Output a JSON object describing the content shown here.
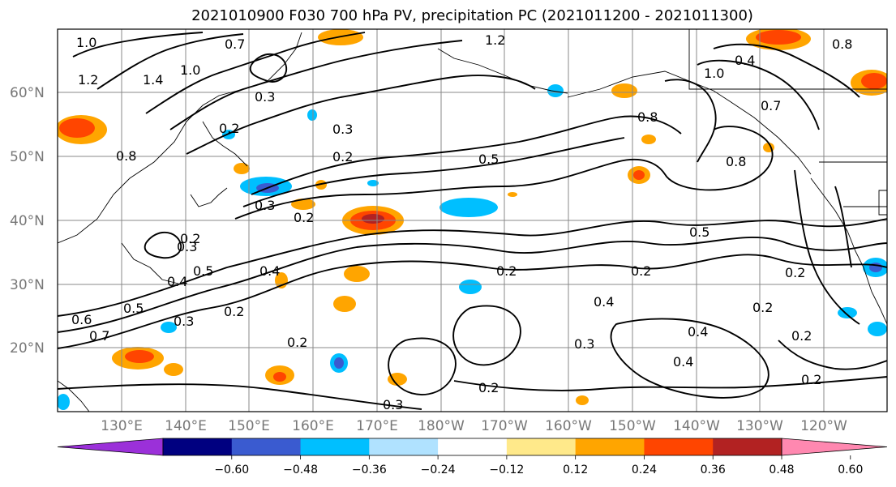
{
  "title": "2021010900 F030 700 hPa PV, precipitation PC (2021011200 - 2021011300)",
  "lat_labels": [
    "60°N",
    "50°N",
    "40°N",
    "30°N",
    "20°N"
  ],
  "lon_labels": [
    "130°E",
    "140°E",
    "150°E",
    "160°E",
    "170°E",
    "180°W",
    "170°W",
    "160°W",
    "150°W",
    "140°W",
    "130°W",
    "120°W"
  ],
  "colorbar": {
    "colors": [
      "#9b30d9",
      "#000080",
      "#3a5bd0",
      "#00bfff",
      "#b0e2ff",
      "#ffffff",
      "#ffe98a",
      "#ffa500",
      "#ff4500",
      "#b22222",
      "#ff88b0"
    ],
    "tick_labels": [
      "−0.60",
      "−0.48",
      "−0.36",
      "−0.24",
      "−0.12",
      "0.12",
      "0.24",
      "0.36",
      "0.48",
      "0.60"
    ]
  },
  "contour_labels": [
    "1.0",
    "0.7",
    "1.2",
    "0.8",
    "1.4",
    "1.0",
    "0.3",
    "0.3",
    "0.2",
    "0.5",
    "0.2",
    "0.3",
    "0.2",
    "0.4",
    "0.5",
    "0.4",
    "0.5",
    "0.7",
    "0.6",
    "0.3",
    "0.2",
    "0.2",
    "0.4",
    "0.3",
    "0.4",
    "0.2",
    "0.3",
    "0.2",
    "0.4",
    "0.2",
    "0.5",
    "0.2",
    "0.8",
    "0.8",
    "1.0",
    "0.4",
    "0.7",
    "0.8",
    "1.2",
    "0.2",
    "0.2",
    "0.2",
    "0.3",
    "0.2"
  ]
}
